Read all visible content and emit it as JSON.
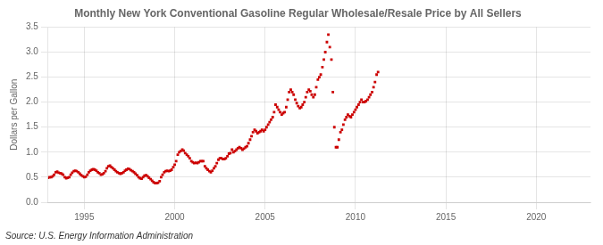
{
  "chart_data": {
    "type": "scatter",
    "title": "Monthly New York Conventional Gasoline Regular Wholesale/Resale Price by All Sellers",
    "ylabel": "Dollars per Gallon",
    "annotation": "Source: U.S. Energy Information Administration",
    "color": "#CC0000",
    "marker": "square",
    "grid": true,
    "xlim": [
      1993.0,
      2023.0
    ],
    "xticks": [
      1995,
      2000,
      2005,
      2010,
      2015,
      2020
    ],
    "ylim": [
      0.0,
      3.5
    ],
    "yticks": [
      {
        "value": 0.0,
        "label": "0.0"
      },
      0.5,
      {
        "value": 1.0,
        "label": "1.0"
      },
      1.5,
      {
        "value": 2.0,
        "label": "2.0"
      },
      2.5,
      {
        "value": 3.0,
        "label": "3.0"
      },
      3.5
    ],
    "x": [
      1993.0,
      1993.08,
      1993.17,
      1993.25,
      1993.33,
      1993.42,
      1993.5,
      1993.58,
      1993.67,
      1993.75,
      1993.83,
      1993.92,
      1994.0,
      1994.08,
      1994.17,
      1994.25,
      1994.33,
      1994.42,
      1994.5,
      1994.58,
      1994.67,
      1994.75,
      1994.83,
      1994.92,
      1995.0,
      1995.08,
      1995.17,
      1995.25,
      1995.33,
      1995.42,
      1995.5,
      1995.58,
      1995.67,
      1995.75,
      1995.83,
      1995.92,
      1996.0,
      1996.08,
      1996.17,
      1996.25,
      1996.33,
      1996.42,
      1996.5,
      1996.58,
      1996.67,
      1996.75,
      1996.83,
      1996.92,
      1997.0,
      1997.08,
      1997.17,
      1997.25,
      1997.33,
      1997.42,
      1997.5,
      1997.58,
      1997.67,
      1997.75,
      1997.83,
      1997.92,
      1998.0,
      1998.08,
      1998.17,
      1998.25,
      1998.33,
      1998.42,
      1998.5,
      1998.58,
      1998.67,
      1998.75,
      1998.83,
      1998.92,
      1999.0,
      1999.08,
      1999.17,
      1999.25,
      1999.33,
      1999.42,
      1999.5,
      1999.58,
      1999.67,
      1999.75,
      1999.83,
      1999.92,
      2000.0,
      2000.08,
      2000.17,
      2000.25,
      2000.33,
      2000.42,
      2000.5,
      2000.58,
      2000.67,
      2000.75,
      2000.83,
      2000.92,
      2001.0,
      2001.08,
      2001.17,
      2001.25,
      2001.33,
      2001.42,
      2001.5,
      2001.58,
      2001.67,
      2001.75,
      2001.83,
      2001.92,
      2002.0,
      2002.08,
      2002.17,
      2002.25,
      2002.33,
      2002.42,
      2002.5,
      2002.58,
      2002.67,
      2002.75,
      2002.83,
      2002.92,
      2003.0,
      2003.08,
      2003.17,
      2003.25,
      2003.33,
      2003.42,
      2003.5,
      2003.58,
      2003.67,
      2003.75,
      2003.83,
      2003.92,
      2004.0,
      2004.08,
      2004.17,
      2004.25,
      2004.33,
      2004.42,
      2004.5,
      2004.58,
      2004.67,
      2004.75,
      2004.83,
      2004.92,
      2005.0,
      2005.08,
      2005.17,
      2005.25,
      2005.33,
      2005.42,
      2005.5,
      2005.58,
      2005.67,
      2005.75,
      2005.83,
      2005.92,
      2006.0,
      2006.08,
      2006.17,
      2006.25,
      2006.33,
      2006.42,
      2006.5,
      2006.58,
      2006.67,
      2006.75,
      2006.83,
      2006.92,
      2007.0,
      2007.08,
      2007.17,
      2007.25,
      2007.33,
      2007.42,
      2007.5,
      2007.58,
      2007.67,
      2007.75,
      2007.83,
      2007.92,
      2008.0,
      2008.08,
      2008.17,
      2008.25,
      2008.33,
      2008.42,
      2008.5,
      2008.58,
      2008.67,
      2008.75,
      2008.83,
      2008.92,
      2009.0,
      2009.08,
      2009.17,
      2009.25,
      2009.33,
      2009.42,
      2009.5,
      2009.58,
      2009.67,
      2009.75,
      2009.83,
      2009.92,
      2010.0,
      2010.08,
      2010.17,
      2010.25,
      2010.33,
      2010.42,
      2010.5,
      2010.58,
      2010.67,
      2010.75,
      2010.83,
      2010.92,
      2011.0,
      2011.08,
      2011.17,
      2011.25
    ],
    "values": [
      0.49,
      0.5,
      0.5,
      0.52,
      0.55,
      0.6,
      0.61,
      0.59,
      0.58,
      0.57,
      0.55,
      0.5,
      0.48,
      0.49,
      0.5,
      0.55,
      0.59,
      0.62,
      0.63,
      0.62,
      0.6,
      0.57,
      0.54,
      0.52,
      0.5,
      0.51,
      0.55,
      0.6,
      0.63,
      0.65,
      0.66,
      0.65,
      0.63,
      0.6,
      0.58,
      0.55,
      0.56,
      0.58,
      0.62,
      0.68,
      0.72,
      0.73,
      0.7,
      0.68,
      0.65,
      0.62,
      0.6,
      0.58,
      0.57,
      0.58,
      0.6,
      0.63,
      0.65,
      0.67,
      0.66,
      0.64,
      0.62,
      0.6,
      0.57,
      0.54,
      0.5,
      0.48,
      0.47,
      0.5,
      0.53,
      0.54,
      0.52,
      0.49,
      0.46,
      0.43,
      0.4,
      0.38,
      0.38,
      0.39,
      0.42,
      0.5,
      0.55,
      0.6,
      0.62,
      0.63,
      0.62,
      0.63,
      0.65,
      0.7,
      0.75,
      0.82,
      0.95,
      1.0,
      1.02,
      1.05,
      1.03,
      0.98,
      0.95,
      0.92,
      0.88,
      0.82,
      0.8,
      0.78,
      0.79,
      0.78,
      0.8,
      0.82,
      0.82,
      0.82,
      0.72,
      0.68,
      0.65,
      0.62,
      0.6,
      0.63,
      0.68,
      0.72,
      0.78,
      0.85,
      0.88,
      0.88,
      0.86,
      0.86,
      0.88,
      0.92,
      0.97,
      0.98,
      1.05,
      1.0,
      1.02,
      1.05,
      1.08,
      1.1,
      1.08,
      1.05,
      1.07,
      1.1,
      1.12,
      1.18,
      1.25,
      1.32,
      1.4,
      1.45,
      1.42,
      1.38,
      1.4,
      1.42,
      1.45,
      1.42,
      1.45,
      1.5,
      1.55,
      1.6,
      1.65,
      1.7,
      1.8,
      1.95,
      1.9,
      1.85,
      1.8,
      1.75,
      1.78,
      1.8,
      1.9,
      2.05,
      2.2,
      2.25,
      2.2,
      2.15,
      2.05,
      1.98,
      1.92,
      1.88,
      1.9,
      1.95,
      2.0,
      2.1,
      2.2,
      2.25,
      2.22,
      2.15,
      2.1,
      2.15,
      2.3,
      2.45,
      2.5,
      2.55,
      2.7,
      2.85,
      3.0,
      3.2,
      3.35,
      3.1,
      2.85,
      2.2,
      1.5,
      1.1,
      1.1,
      1.25,
      1.4,
      1.45,
      1.55,
      1.65,
      1.7,
      1.75,
      1.72,
      1.7,
      1.75,
      1.8,
      1.85,
      1.9,
      1.95,
      2.0,
      2.05,
      2.0,
      2.0,
      2.02,
      2.05,
      2.1,
      2.15,
      2.2,
      2.3,
      2.4,
      2.55,
      2.6
    ]
  }
}
